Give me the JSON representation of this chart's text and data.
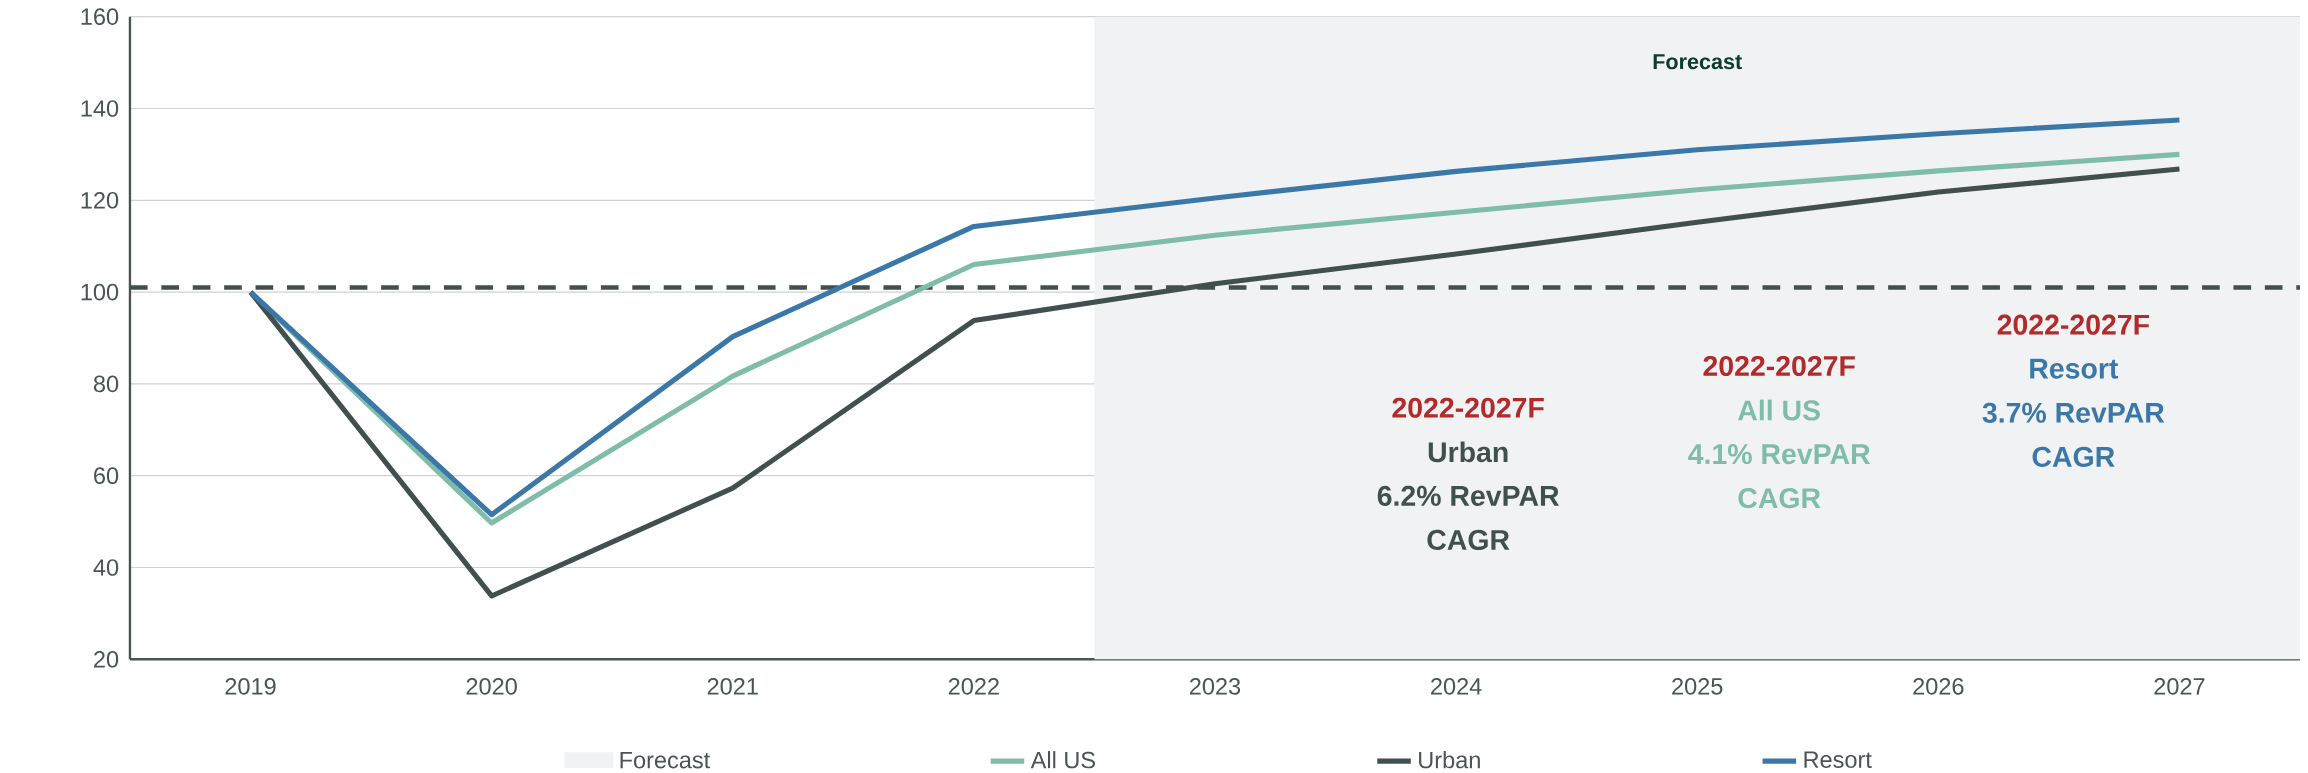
{
  "chart_data": {
    "type": "line",
    "categories": [
      "2019",
      "2020",
      "2021",
      "2022",
      "2023",
      "2024",
      "2025",
      "2026",
      "2027"
    ],
    "series": [
      {
        "name": "All US",
        "color": "#7fbcaa",
        "values": [
          100,
          49.7,
          81.7,
          106,
          112.4,
          117.4,
          122.3,
          126.4,
          130
        ]
      },
      {
        "name": "Urban",
        "color": "#424f4f",
        "values": [
          100,
          33.8,
          57.3,
          93.8,
          101.8,
          108.3,
          115.2,
          121.8,
          126.8
        ]
      },
      {
        "name": "Resort",
        "color": "#3b78a8",
        "values": [
          100,
          51.5,
          90.3,
          114.3,
          120.5,
          126.3,
          131,
          134.5,
          137.5
        ]
      }
    ],
    "ylim": [
      20,
      160
    ],
    "yticks": [
      20,
      40,
      60,
      80,
      100,
      120,
      140,
      160
    ],
    "grid": "y",
    "legend": "bottom",
    "marker": "none",
    "line_style": "solid",
    "ref_lines": [
      {
        "axis": "y",
        "value": 101,
        "color": "#424f4f",
        "line_style": "dashed"
      }
    ],
    "bands": [
      {
        "axis": "x",
        "from": "2023",
        "to": "2027",
        "label": "Forecast",
        "color": "#f0f2f4"
      }
    ],
    "annotations": [
      "2022-2027F",
      "Urban",
      "6.2% RevPAR",
      "CAGR",
      "2022-2027F",
      "All US",
      "4.1% RevPAR",
      "CAGR",
      "2022-2027F",
      "Resort",
      "3.7% RevPAR",
      "CAGR"
    ]
  }
}
